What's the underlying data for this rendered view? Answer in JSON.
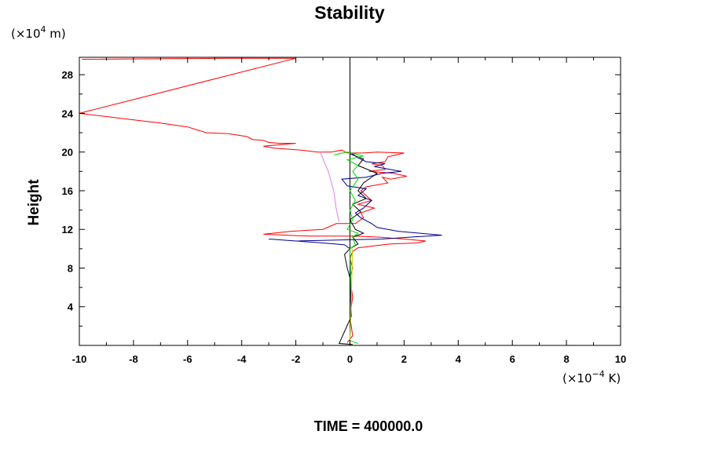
{
  "chart_data": {
    "type": "line",
    "title": "Stability",
    "xlabel": "",
    "ylabel": "Height",
    "x_unit": {
      "base": "(×10",
      "exp": "−4",
      "tail": " K)"
    },
    "y_unit": {
      "base": "(×10",
      "exp": "4",
      "tail": " m)"
    },
    "xlim": [
      -10,
      10
    ],
    "ylim": [
      0,
      29.8
    ],
    "grid": false,
    "x_ticks": [
      "-10",
      "-8",
      "-6",
      "-4",
      "-2",
      "0",
      "2",
      "4",
      "6",
      "8",
      "10"
    ],
    "y_ticks": [
      "4",
      "8",
      "12",
      "16",
      "20",
      "24",
      "28"
    ],
    "footer": "TIME = 400000.0",
    "series": [
      {
        "color": "#000000",
        "points": [
          [
            0,
            0
          ],
          [
            0,
            29.8
          ]
        ]
      },
      {
        "color": "#ff0000",
        "points": [
          [
            -9.9,
            29.6
          ],
          [
            -4.5,
            29.7
          ],
          [
            -2.0,
            29.7
          ],
          [
            -10,
            24.0
          ],
          [
            -8.5,
            23.5
          ],
          [
            -7,
            23.0
          ],
          [
            -6,
            22.6
          ],
          [
            -5.3,
            22.0
          ],
          [
            -4.5,
            21.9
          ],
          [
            -3.8,
            21.6
          ],
          [
            -3.6,
            21.3
          ],
          [
            -3.2,
            21.2
          ],
          [
            -3.0,
            21.0
          ],
          [
            -2.6,
            20.9
          ],
          [
            -2.0,
            20.9
          ],
          [
            -3.2,
            20.6
          ],
          [
            -2.8,
            20.4
          ],
          [
            -1.8,
            20.2
          ],
          [
            -1.2,
            20.0
          ],
          [
            -0.7,
            20.0
          ],
          [
            -0.3,
            20.2
          ],
          [
            -0.1,
            19.9
          ],
          [
            0.5,
            19.9
          ],
          [
            1.0,
            20.0
          ],
          [
            2.0,
            19.9
          ],
          [
            1.4,
            19.5
          ],
          [
            1.3,
            19.0
          ],
          [
            0.8,
            18.8
          ],
          [
            1.2,
            18.6
          ],
          [
            1.3,
            18.2
          ],
          [
            0.7,
            18.0
          ],
          [
            1.6,
            17.8
          ],
          [
            2.1,
            17.5
          ],
          [
            1.5,
            17.2
          ],
          [
            1.2,
            17.4
          ],
          [
            1.4,
            16.8
          ],
          [
            0.6,
            16.4
          ],
          [
            0.4,
            16.0
          ],
          [
            0.8,
            15.0
          ],
          [
            0.3,
            14.6
          ],
          [
            0.9,
            14.2
          ],
          [
            0.4,
            13.7
          ],
          [
            0.5,
            13.2
          ],
          [
            0.2,
            12.6
          ],
          [
            -0.5,
            12.6
          ],
          [
            -1.0,
            12.0
          ],
          [
            -2.2,
            11.8
          ],
          [
            -3.2,
            11.5
          ],
          [
            -1.5,
            11.3
          ],
          [
            0.2,
            11.3
          ],
          [
            1.1,
            11.2
          ],
          [
            2.0,
            11.0
          ],
          [
            2.8,
            10.8
          ],
          [
            2.5,
            10.6
          ],
          [
            1.5,
            10.5
          ],
          [
            0.3,
            10.1
          ],
          [
            0.1,
            9.7
          ],
          [
            0,
            9.0
          ],
          [
            0.1,
            8.0
          ],
          [
            0.0,
            7.0
          ],
          [
            0.1,
            5.0
          ],
          [
            0.0,
            3.0
          ],
          [
            0.1,
            1.0
          ],
          [
            -0.1,
            0.3
          ]
        ]
      },
      {
        "color": "#00008b",
        "points": [
          [
            0,
            20.0
          ],
          [
            0.3,
            19.4
          ],
          [
            0.6,
            19.0
          ],
          [
            1.3,
            18.8
          ],
          [
            0.9,
            18.5
          ],
          [
            1.9,
            18.0
          ],
          [
            1.2,
            17.8
          ],
          [
            0.6,
            17.4
          ],
          [
            -0.3,
            17.2
          ],
          [
            -0.1,
            16.5
          ],
          [
            0.6,
            16.2
          ],
          [
            0.3,
            15.5
          ],
          [
            0.8,
            15.0
          ],
          [
            0.5,
            14.2
          ],
          [
            0.2,
            13.7
          ],
          [
            0.4,
            13.2
          ],
          [
            0.8,
            12.6
          ],
          [
            1.0,
            12.2
          ],
          [
            1.8,
            11.8
          ],
          [
            3.4,
            11.4
          ],
          [
            2.2,
            11.2
          ],
          [
            1.2,
            11.0
          ],
          [
            -2.0,
            10.8
          ],
          [
            -3.0,
            11.0
          ],
          [
            -1.0,
            10.6
          ],
          [
            -0.2,
            10.4
          ],
          [
            0,
            10.0
          ],
          [
            0,
            0.3
          ]
        ]
      },
      {
        "color": "#000000",
        "points": [
          [
            0,
            19.8
          ],
          [
            0.5,
            19.3
          ],
          [
            0.3,
            18.6
          ],
          [
            1.0,
            17.8
          ],
          [
            0.5,
            16.8
          ],
          [
            0.3,
            16.0
          ],
          [
            0.6,
            15.2
          ],
          [
            0.1,
            14.6
          ],
          [
            0.4,
            13.8
          ],
          [
            0.0,
            13.0
          ],
          [
            0.2,
            12.0
          ],
          [
            0.5,
            11.6
          ],
          [
            0.1,
            11.2
          ],
          [
            0.3,
            10.5
          ],
          [
            0.0,
            10.0
          ],
          [
            -0.2,
            9.4
          ],
          [
            -0.1,
            8.0
          ],
          [
            0.0,
            7.0
          ],
          [
            0.05,
            3.0
          ],
          [
            -0.4,
            0.2
          ],
          [
            0.1,
            0.1
          ]
        ]
      },
      {
        "color": "#00dd00",
        "points": [
          [
            -0.6,
            19.7
          ],
          [
            -0.1,
            20.0
          ],
          [
            0.5,
            19.6
          ],
          [
            -0.1,
            19.2
          ],
          [
            0.3,
            18.6
          ],
          [
            0.1,
            18.0
          ],
          [
            0.3,
            17.2
          ],
          [
            0.0,
            16.0
          ],
          [
            0.2,
            15.0
          ],
          [
            0.0,
            14.0
          ],
          [
            0.1,
            13.0
          ],
          [
            -0.1,
            12.0
          ],
          [
            0.3,
            11.6
          ],
          [
            0.1,
            11.2
          ],
          [
            0.2,
            10.4
          ],
          [
            0.0,
            10.0
          ],
          [
            0.05,
            5.0
          ],
          [
            0.0,
            0.5
          ],
          [
            0.3,
            0.2
          ]
        ]
      },
      {
        "color": "#e080e0",
        "points": [
          [
            -1.1,
            20.0
          ],
          [
            -0.8,
            18.0
          ],
          [
            -0.6,
            16.0
          ],
          [
            -0.5,
            14.0
          ],
          [
            -0.4,
            12.8
          ]
        ]
      },
      {
        "color": "#cccc00",
        "points": [
          [
            0.1,
            10.0
          ],
          [
            0.05,
            5.0
          ],
          [
            0.0,
            0.5
          ]
        ]
      }
    ]
  }
}
